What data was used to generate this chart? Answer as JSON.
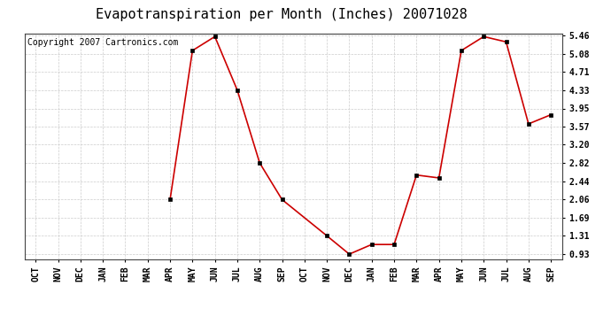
{
  "title": "Evapotranspiration per Month (Inches) 20071028",
  "copyright": "Copyright 2007 Cartronics.com",
  "x_labels": [
    "OCT",
    "NOV",
    "DEC",
    "JAN",
    "FEB",
    "MAR",
    "APR",
    "MAY",
    "JUN",
    "JUL",
    "AUG",
    "SEP",
    "OCT",
    "NOV",
    "DEC",
    "JAN",
    "FEB",
    "MAR",
    "APR",
    "MAY",
    "JUN",
    "JUL",
    "AUG",
    "SEP"
  ],
  "y_values": [
    null,
    null,
    null,
    null,
    null,
    null,
    2.06,
    5.15,
    5.44,
    4.33,
    2.82,
    2.06,
    null,
    1.31,
    0.93,
    1.13,
    1.13,
    2.57,
    2.51,
    5.15,
    5.44,
    5.33,
    3.63,
    3.82
  ],
  "y_ticks": [
    0.93,
    1.31,
    1.69,
    2.06,
    2.44,
    2.82,
    3.2,
    3.57,
    3.95,
    4.33,
    4.71,
    5.08,
    5.46
  ],
  "y_min": 0.93,
  "y_max": 5.46,
  "line_color": "#cc0000",
  "marker_color": "#000000",
  "bg_color": "#ffffff",
  "grid_color": "#cccccc",
  "title_fontsize": 11,
  "copyright_fontsize": 7,
  "tick_fontsize": 7,
  "figwidth": 6.9,
  "figheight": 3.75,
  "dpi": 100
}
